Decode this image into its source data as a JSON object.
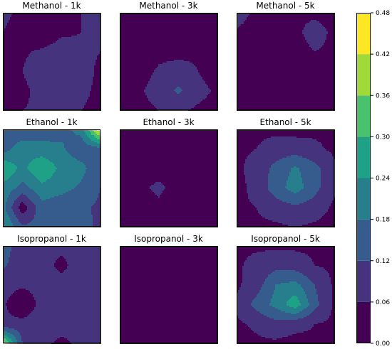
{
  "chart_data": {
    "type": "heatmap",
    "plot_type": "filled contour grid (3x3)",
    "grid_size": [
      6,
      6
    ],
    "axes_ticks_visible": false,
    "colormap": "viridis",
    "colorbar": {
      "min": 0.0,
      "max": 0.48,
      "levels": [
        0.0,
        0.06,
        0.12,
        0.18,
        0.24,
        0.3,
        0.36,
        0.42,
        0.48
      ],
      "tick_labels": [
        "0.00",
        "0.06",
        "0.12",
        "0.18",
        "0.24",
        "0.30",
        "0.36",
        "0.42",
        "0.48"
      ],
      "band_colors": [
        "#440154",
        "#46337e",
        "#365c8d",
        "#277f8e",
        "#1fa187",
        "#4ac16d",
        "#a0da39",
        "#fde725"
      ],
      "placement": "right"
    },
    "panels": [
      {
        "title": "Methanol - 1k",
        "values": [
          [
            0.07,
            0.05,
            0.06,
            0.05,
            0.06,
            0.08
          ],
          [
            0.06,
            0.04,
            0.01,
            0.05,
            0.06,
            0.09
          ],
          [
            0.05,
            0.05,
            0.07,
            0.09,
            0.07,
            0.06
          ],
          [
            0.02,
            0.06,
            0.11,
            0.12,
            0.08,
            0.05
          ],
          [
            0.02,
            0.04,
            0.09,
            0.09,
            0.07,
            0.05
          ],
          [
            0.05,
            0.06,
            0.07,
            0.08,
            0.06,
            0.05
          ]
        ]
      },
      {
        "title": "Methanol - 3k",
        "values": [
          [
            0.03,
            0.04,
            0.05,
            0.05,
            0.03,
            0.03
          ],
          [
            0.04,
            0.03,
            0.05,
            0.04,
            0.02,
            0.05
          ],
          [
            0.03,
            0.01,
            0.04,
            0.04,
            0.05,
            0.03
          ],
          [
            0.04,
            0.03,
            0.07,
            0.09,
            0.06,
            0.03
          ],
          [
            0.04,
            0.05,
            0.09,
            0.13,
            0.08,
            0.05
          ],
          [
            0.05,
            0.04,
            0.06,
            0.07,
            0.05,
            0.04
          ]
        ]
      },
      {
        "title": "Methanol - 5k",
        "values": [
          [
            0.1,
            0.04,
            0.04,
            0.05,
            0.05,
            0.04
          ],
          [
            0.05,
            0.03,
            0.04,
            0.05,
            0.08,
            0.05
          ],
          [
            0.03,
            0.03,
            0.05,
            0.04,
            0.06,
            0.05
          ],
          [
            0.04,
            0.05,
            0.04,
            0.03,
            0.04,
            0.05
          ],
          [
            0.05,
            0.04,
            0.05,
            0.05,
            0.04,
            0.05
          ],
          [
            0.04,
            0.05,
            0.04,
            0.05,
            0.05,
            0.04
          ]
        ]
      },
      {
        "title": "Ethanol - 1k",
        "values": [
          [
            0.14,
            0.13,
            0.15,
            0.16,
            0.2,
            0.47
          ],
          [
            0.15,
            0.22,
            0.2,
            0.19,
            0.14,
            0.16
          ],
          [
            0.3,
            0.22,
            0.3,
            0.22,
            0.2,
            0.13
          ],
          [
            0.22,
            0.16,
            0.22,
            0.2,
            0.17,
            0.12
          ],
          [
            0.2,
            0.02,
            0.16,
            0.14,
            0.13,
            0.11
          ],
          [
            0.25,
            0.13,
            0.14,
            0.12,
            0.15,
            0.1
          ]
        ]
      },
      {
        "title": "Ethanol - 3k",
        "values": [
          [
            0.05,
            0.04,
            0.05,
            0.05,
            0.05,
            0.05
          ],
          [
            0.04,
            0.03,
            0.06,
            0.05,
            0.04,
            0.05
          ],
          [
            0.05,
            0.04,
            0.04,
            0.05,
            0.03,
            0.04
          ],
          [
            0.06,
            0.05,
            0.07,
            0.04,
            0.05,
            0.06
          ],
          [
            0.05,
            0.03,
            0.05,
            0.02,
            0.04,
            0.05
          ],
          [
            0.04,
            0.03,
            0.04,
            0.03,
            0.04,
            0.05
          ]
        ]
      },
      {
        "title": "Ethanol - 5k",
        "values": [
          [
            0.04,
            0.05,
            0.05,
            0.04,
            0.05,
            0.05
          ],
          [
            0.05,
            0.06,
            0.08,
            0.09,
            0.07,
            0.05
          ],
          [
            0.05,
            0.08,
            0.14,
            0.19,
            0.14,
            0.07
          ],
          [
            0.04,
            0.08,
            0.15,
            0.21,
            0.14,
            0.07
          ],
          [
            0.05,
            0.06,
            0.09,
            0.11,
            0.09,
            0.05
          ],
          [
            0.04,
            0.05,
            0.05,
            0.06,
            0.05,
            0.04
          ]
        ]
      },
      {
        "title": "Isopropanol - 1k",
        "values": [
          [
            0.16,
            0.07,
            0.08,
            0.08,
            0.07,
            0.06
          ],
          [
            0.13,
            0.08,
            0.09,
            0.04,
            0.1,
            0.07
          ],
          [
            0.08,
            0.07,
            0.08,
            0.09,
            0.08,
            0.07
          ],
          [
            0.07,
            0.01,
            0.08,
            0.07,
            0.09,
            0.08
          ],
          [
            0.07,
            0.08,
            0.09,
            0.08,
            0.07,
            0.06
          ],
          [
            0.4,
            0.12,
            0.07,
            0.05,
            0.07,
            0.06
          ]
        ]
      },
      {
        "title": "Isopropanol - 3k",
        "values": [
          [
            0.06,
            0.05,
            0.04,
            0.05,
            0.05,
            0.05
          ],
          [
            0.05,
            0.06,
            0.06,
            0.04,
            0.05,
            0.05
          ],
          [
            0.04,
            0.02,
            0.03,
            0.03,
            0.04,
            0.05
          ],
          [
            0.05,
            0.03,
            0.02,
            0.02,
            0.04,
            0.05
          ],
          [
            0.04,
            0.05,
            0.04,
            0.05,
            0.05,
            0.04
          ],
          [
            0.05,
            0.05,
            0.04,
            0.04,
            0.05,
            0.04
          ]
        ]
      },
      {
        "title": "Isopropanol - 5k",
        "values": [
          [
            0.05,
            0.05,
            0.05,
            0.05,
            0.05,
            0.05
          ],
          [
            0.05,
            0.08,
            0.1,
            0.09,
            0.06,
            0.05
          ],
          [
            0.05,
            0.09,
            0.18,
            0.2,
            0.12,
            0.05
          ],
          [
            0.07,
            0.14,
            0.2,
            0.28,
            0.14,
            0.05
          ],
          [
            0.05,
            0.07,
            0.1,
            0.08,
            0.06,
            0.05
          ],
          [
            0.04,
            0.05,
            0.05,
            0.04,
            0.05,
            0.04
          ]
        ]
      }
    ]
  }
}
